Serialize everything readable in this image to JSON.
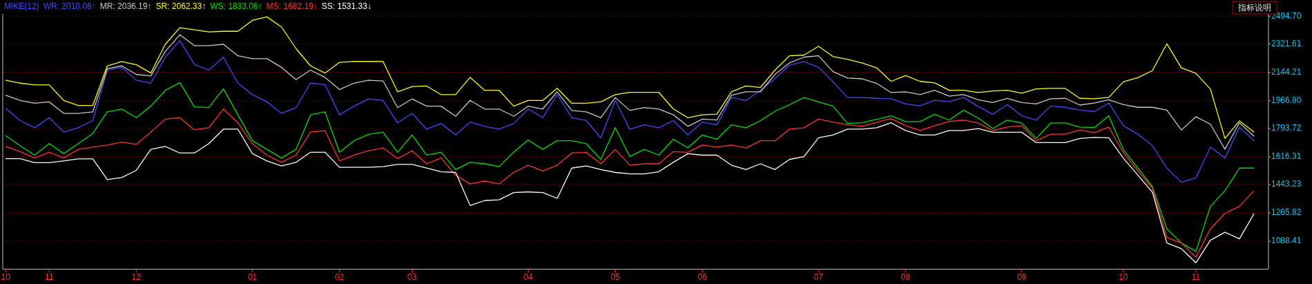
{
  "chart_data": {
    "type": "line",
    "title": "MIKE(12)",
    "annotations": [
      "指标说明"
    ],
    "legend": "top left",
    "grid": "y",
    "ylim": [
      914,
      2510
    ],
    "yticks": [
      {
        "value": 1088.41,
        "label": "1088.41"
      },
      {
        "value": 1265.82,
        "label": "1265.82"
      },
      {
        "value": 1443.23,
        "label": "1443.23"
      },
      {
        "value": 1616.31,
        "label": "1616.31"
      },
      {
        "value": 1793.72,
        "label": "1793.72"
      },
      {
        "value": 1966.8,
        "label": "1966.80"
      },
      {
        "value": 2144.21,
        "label": "2144.21"
      },
      {
        "value": 2321.61,
        "label": "2321.61"
      },
      {
        "value": 2494.7,
        "label": "2494.70"
      }
    ],
    "categories": [
      "10",
      null,
      null,
      "11",
      null,
      null,
      null,
      null,
      null,
      "12",
      null,
      null,
      null,
      null,
      null,
      null,
      null,
      "01",
      null,
      null,
      null,
      null,
      null,
      "02",
      null,
      null,
      null,
      null,
      "03",
      null,
      null,
      null,
      null,
      null,
      null,
      null,
      "04",
      null,
      null,
      null,
      null,
      null,
      "05",
      null,
      null,
      null,
      null,
      null,
      "06",
      null,
      null,
      null,
      null,
      null,
      null,
      null,
      "07",
      null,
      null,
      null,
      null,
      null,
      "08",
      null,
      null,
      null,
      null,
      null,
      null,
      null,
      "09",
      null,
      null,
      null,
      null,
      null,
      null,
      "10",
      null,
      null,
      null,
      null,
      "11",
      null,
      null,
      null,
      null
    ],
    "series": [
      {
        "name": "WR: 2010.06↑",
        "color": "#4646ff",
        "values": [
          1919,
          1843,
          1798,
          1861,
          1771,
          1798,
          1843,
          2158,
          2176,
          2095,
          2077,
          2239,
          2343,
          2194,
          2158,
          2239,
          2077,
          2005,
          1960,
          1888,
          1924,
          2077,
          2068,
          1879,
          1933,
          1978,
          1969,
          1829,
          1888,
          1789,
          1825,
          1753,
          1834,
          1807,
          1789,
          1825,
          1915,
          1861,
          2006,
          1861,
          1843,
          1735,
          1969,
          1789,
          1816,
          1798,
          1843,
          1753,
          1834,
          1816,
          1987,
          1969,
          2032,
          2104,
          2189,
          2212,
          2176,
          2086,
          1987,
          1987,
          1982,
          1979,
          1947,
          1935,
          1970,
          1961,
          1988,
          1931,
          1882,
          1943,
          1873,
          1846,
          1934,
          1926,
          1908,
          1899,
          1952,
          1811,
          1758,
          1687,
          1546,
          1457,
          1484,
          1678,
          1608,
          1802,
          1717
        ]
      },
      {
        "name": "MR: 2036.19↑",
        "color": "#c8c8c8",
        "values": [
          2001,
          1969,
          1951,
          1960,
          1888,
          1888,
          1897,
          2167,
          2185,
          2131,
          2122,
          2275,
          2379,
          2311,
          2311,
          2320,
          2248,
          2230,
          2230,
          2176,
          2099,
          2158,
          2113,
          2037,
          2077,
          2095,
          2091,
          1924,
          1978,
          1933,
          1933,
          1870,
          1969,
          1915,
          1915,
          1870,
          1933,
          1915,
          2023,
          1906,
          1897,
          1861,
          1987,
          1906,
          1924,
          1915,
          1879,
          1807,
          1852,
          1847,
          2001,
          2023,
          2023,
          2131,
          2203,
          2239,
          2248,
          2149,
          2109,
          2104,
          2076,
          2018,
          2023,
          2005,
          2032,
          1996,
          2005,
          1973,
          1956,
          1982,
          1956,
          1947,
          1979,
          1982,
          1940,
          1952,
          1973,
          1943,
          1926,
          1926,
          1908,
          1784,
          1867,
          1820,
          1664,
          1829,
          1746
        ]
      },
      {
        "name": "SR: 2062.33↑",
        "color": "#ffff00",
        "values": [
          2095,
          2077,
          2066,
          2066,
          1969,
          1937,
          1937,
          2185,
          2212,
          2192,
          2140,
          2320,
          2423,
          2410,
          2397,
          2401,
          2401,
          2469,
          2491,
          2428,
          2293,
          2185,
          2140,
          2207,
          2212,
          2212,
          2212,
          2023,
          2055,
          2059,
          2005,
          2005,
          2113,
          2032,
          2032,
          1933,
          1969,
          1969,
          2045,
          1951,
          1951,
          1960,
          2005,
          2019,
          2019,
          2019,
          1915,
          1861,
          1879,
          1883,
          2023,
          2059,
          2050,
          2158,
          2248,
          2252,
          2307,
          2243,
          2226,
          2203,
          2173,
          2088,
          2124,
          2088,
          2079,
          2032,
          2032,
          2018,
          2028,
          2032,
          2014,
          2041,
          2044,
          2044,
          1982,
          1979,
          1988,
          2085,
          2111,
          2155,
          2323,
          2173,
          2138,
          2040,
          1731,
          1841,
          1772
        ]
      },
      {
        "name": "WS: 1833.06↑",
        "color": "#00e000",
        "values": [
          1749,
          1685,
          1627,
          1699,
          1636,
          1699,
          1762,
          1897,
          1915,
          1861,
          1933,
          2032,
          2081,
          1929,
          1924,
          2041,
          1879,
          1717,
          1663,
          1609,
          1663,
          1879,
          1897,
          1645,
          1717,
          1757,
          1771,
          1645,
          1753,
          1627,
          1645,
          1537,
          1582,
          1573,
          1555,
          1645,
          1722,
          1663,
          1717,
          1717,
          1699,
          1600,
          1798,
          1618,
          1663,
          1627,
          1726,
          1672,
          1753,
          1726,
          1816,
          1798,
          1843,
          1901,
          1942,
          1987,
          1960,
          1933,
          1825,
          1829,
          1851,
          1873,
          1837,
          1837,
          1882,
          1846,
          1908,
          1859,
          1793,
          1846,
          1828,
          1731,
          1828,
          1828,
          1802,
          1799,
          1873,
          1661,
          1546,
          1431,
          1166,
          1078,
          1025,
          1307,
          1404,
          1546,
          1546
        ]
      },
      {
        "name": "MS: 1682.19↓",
        "color": "#ff3232",
        "values": [
          1681,
          1649,
          1609,
          1645,
          1609,
          1663,
          1677,
          1690,
          1708,
          1694,
          1771,
          1852,
          1861,
          1785,
          1798,
          1915,
          1829,
          1699,
          1627,
          1582,
          1627,
          1771,
          1780,
          1591,
          1627,
          1654,
          1672,
          1605,
          1654,
          1573,
          1609,
          1501,
          1447,
          1465,
          1447,
          1519,
          1564,
          1528,
          1564,
          1640,
          1645,
          1573,
          1663,
          1564,
          1573,
          1573,
          1649,
          1645,
          1690,
          1677,
          1690,
          1672,
          1717,
          1717,
          1789,
          1798,
          1852,
          1834,
          1816,
          1807,
          1832,
          1855,
          1811,
          1781,
          1811,
          1837,
          1846,
          1828,
          1781,
          1802,
          1811,
          1717,
          1758,
          1758,
          1784,
          1767,
          1802,
          1643,
          1528,
          1422,
          1113,
          1078,
          989,
          1166,
          1263,
          1307,
          1404
        ]
      },
      {
        "name": "SS: 1531.33↓",
        "color": "#ffffff",
        "values": [
          1605,
          1605,
          1580,
          1580,
          1591,
          1604,
          1604,
          1474,
          1487,
          1532,
          1663,
          1681,
          1640,
          1640,
          1699,
          1789,
          1789,
          1636,
          1591,
          1559,
          1582,
          1645,
          1645,
          1551,
          1551,
          1551,
          1555,
          1569,
          1569,
          1546,
          1523,
          1519,
          1312,
          1343,
          1348,
          1393,
          1397,
          1393,
          1357,
          1546,
          1559,
          1537,
          1519,
          1510,
          1510,
          1523,
          1582,
          1636,
          1627,
          1627,
          1564,
          1537,
          1573,
          1537,
          1600,
          1618,
          1735,
          1753,
          1789,
          1789,
          1798,
          1829,
          1781,
          1753,
          1753,
          1781,
          1781,
          1793,
          1770,
          1770,
          1770,
          1705,
          1705,
          1705,
          1731,
          1738,
          1735,
          1608,
          1502,
          1396,
          1078,
          1042,
          954,
          1095,
          1145,
          1104,
          1260
        ]
      }
    ]
  }
}
